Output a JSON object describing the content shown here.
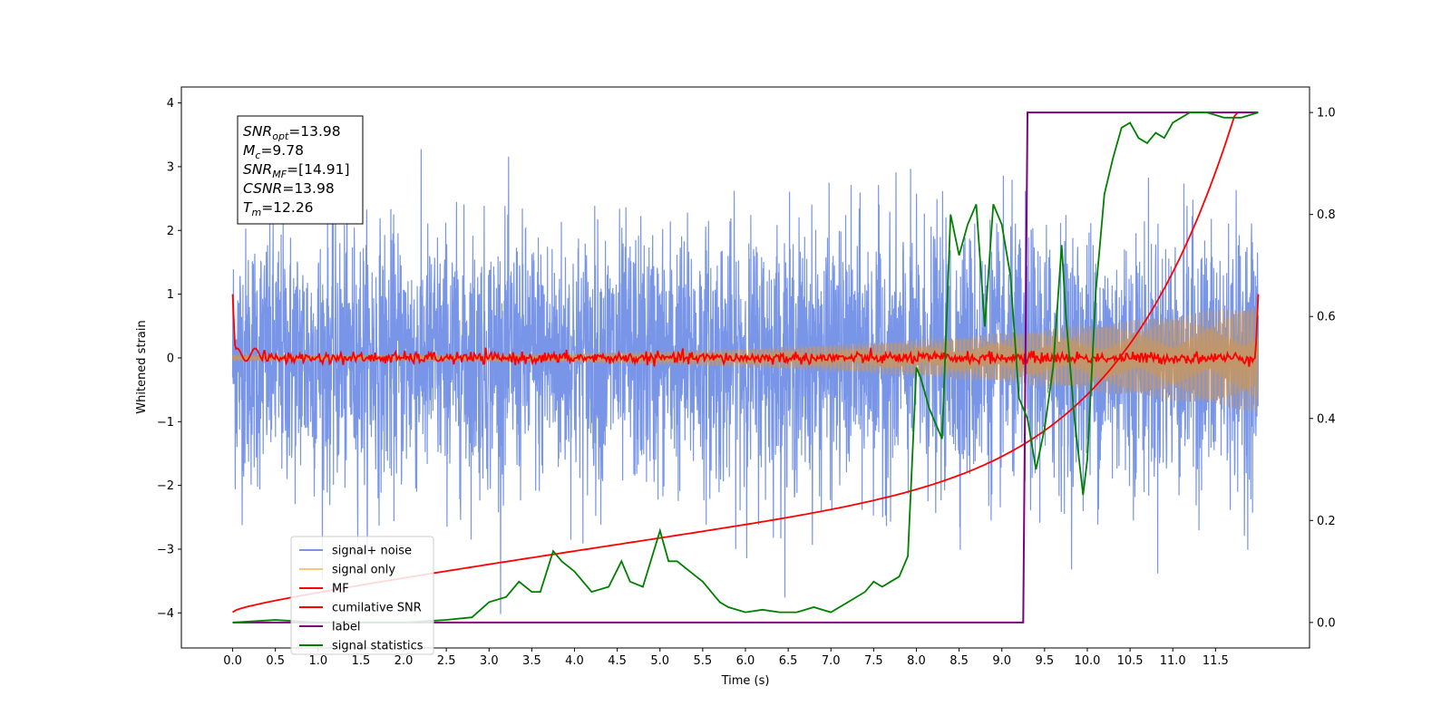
{
  "chart_data": {
    "type": "line",
    "xlabel": "Time (s)",
    "ylabel": "Whitened strain",
    "xlim": [
      -0.6,
      12.6
    ],
    "ylim": [
      -4.55,
      4.25
    ],
    "y2lim": [
      -0.05,
      1.05
    ],
    "x_ticks": [
      "0.0",
      "0.5",
      "1.0",
      "1.5",
      "2.0",
      "2.5",
      "3.0",
      "3.5",
      "4.0",
      "4.5",
      "5.0",
      "5.5",
      "6.0",
      "6.5",
      "7.0",
      "7.5",
      "8.0",
      "8.5",
      "9.0",
      "9.5",
      "10.0",
      "10.5",
      "11.0",
      "11.5"
    ],
    "y_ticks": [
      "4",
      "3",
      "2",
      "1",
      "0",
      "−1",
      "−2",
      "−3",
      "−4"
    ],
    "y2_ticks": [
      "1.0",
      "0.8",
      "0.6",
      "0.4",
      "0.2",
      "0.0"
    ],
    "legend_position": "lower-left",
    "annotation": [
      {
        "main": "SNR",
        "sub": "opt",
        "rest": "=13.98"
      },
      {
        "main": "M",
        "sub": "c",
        "rest": "=9.78"
      },
      {
        "main": "SNR",
        "sub": "MF",
        "rest": "=[14.91]"
      },
      {
        "main": "CSNR",
        "sub": "",
        "rest": "=13.98"
      },
      {
        "main": "T",
        "sub": "m",
        "rest": "=12.26"
      }
    ],
    "series": [
      {
        "name": "signal+ noise",
        "color": "#7895e8",
        "axis": "left",
        "description": "white noise, std ~1, spanning 0 to 12 s"
      },
      {
        "name": "signal only",
        "color": "#f5c87a",
        "axis": "left",
        "amplitude_start": 0.05,
        "amplitude_end": 0.85
      },
      {
        "name": "MF",
        "color": "#ff0000",
        "axis": "left",
        "values_note": "near 0, spike to 1 at t=0 and t=12"
      },
      {
        "name": "cumilative SNR",
        "color": "#ff0000",
        "axis": "right",
        "x": [
          0,
          1,
          2,
          3,
          4,
          5,
          6,
          7,
          8,
          9,
          10,
          11,
          11.6,
          12
        ],
        "y": [
          0.0,
          0.05,
          0.08,
          0.11,
          0.14,
          0.17,
          0.2,
          0.24,
          0.28,
          0.35,
          0.45,
          0.62,
          0.8,
          1.0
        ]
      },
      {
        "name": "label",
        "color": "#800080",
        "axis": "right",
        "x": [
          0,
          9.25,
          9.3,
          12
        ],
        "y": [
          0,
          0,
          1,
          1
        ]
      },
      {
        "name": "signal statistics",
        "color": "#008000",
        "axis": "right",
        "x": [
          0,
          0.5,
          1.0,
          1.5,
          2.0,
          2.5,
          2.8,
          3.0,
          3.2,
          3.35,
          3.5,
          3.6,
          3.75,
          3.85,
          4.0,
          4.2,
          4.4,
          4.55,
          4.65,
          4.8,
          5.0,
          5.1,
          5.2,
          5.35,
          5.5,
          5.7,
          5.8,
          6.0,
          6.2,
          6.4,
          6.6,
          6.8,
          7.0,
          7.2,
          7.4,
          7.5,
          7.6,
          7.7,
          7.8,
          7.9,
          8.0,
          8.05,
          8.15,
          8.3,
          8.4,
          8.5,
          8.6,
          8.7,
          8.8,
          8.9,
          9.0,
          9.1,
          9.2,
          9.3,
          9.4,
          9.5,
          9.6,
          9.7,
          9.75,
          9.85,
          9.95,
          10.0,
          10.1,
          10.2,
          10.3,
          10.4,
          10.5,
          10.6,
          10.7,
          10.8,
          10.9,
          11.0,
          11.1,
          11.2,
          11.4,
          11.6,
          11.8,
          12.0
        ],
        "y": [
          0.0,
          0.005,
          0.0,
          0.0,
          0.0,
          0.005,
          0.01,
          0.04,
          0.05,
          0.08,
          0.06,
          0.06,
          0.14,
          0.12,
          0.1,
          0.06,
          0.07,
          0.12,
          0.08,
          0.07,
          0.18,
          0.12,
          0.12,
          0.1,
          0.08,
          0.04,
          0.03,
          0.02,
          0.025,
          0.02,
          0.02,
          0.03,
          0.02,
          0.04,
          0.06,
          0.08,
          0.07,
          0.08,
          0.09,
          0.13,
          0.5,
          0.48,
          0.42,
          0.36,
          0.8,
          0.72,
          0.78,
          0.82,
          0.58,
          0.82,
          0.78,
          0.68,
          0.44,
          0.4,
          0.3,
          0.38,
          0.5,
          0.74,
          0.6,
          0.4,
          0.25,
          0.32,
          0.65,
          0.84,
          0.91,
          0.97,
          0.98,
          0.95,
          0.94,
          0.96,
          0.95,
          0.98,
          0.99,
          1.0,
          1.0,
          0.99,
          0.99,
          1.0
        ]
      }
    ]
  }
}
